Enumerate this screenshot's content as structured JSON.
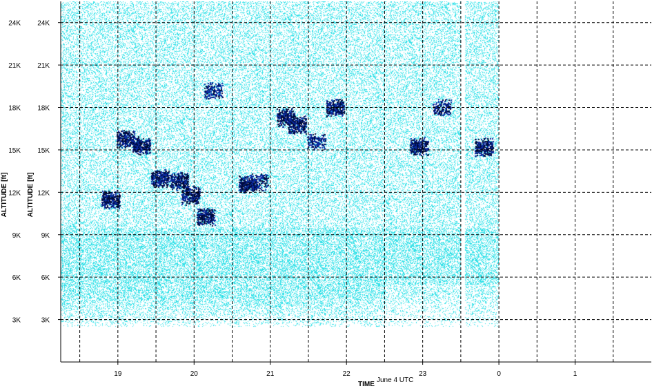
{
  "chart_data": {
    "type": "heatmap",
    "title": "",
    "xlabel": "TIME",
    "ylabel": "ALTITUDE [ft]",
    "date_label": "June 4 UTC",
    "x_tick_labels": [
      "19",
      "20",
      "21",
      "22",
      "23",
      "0",
      "1"
    ],
    "x_ticks_hours": [
      19,
      20,
      21,
      22,
      23,
      24,
      25
    ],
    "xlim_hours": [
      18.25,
      26.0
    ],
    "data_end_hour": 24.0,
    "y_tick_labels": [
      "3K",
      "6K",
      "9K",
      "12K",
      "15K",
      "18K",
      "21K",
      "24K"
    ],
    "y_ticks_ft": [
      3000,
      6000,
      9000,
      12000,
      15000,
      18000,
      21000,
      24000
    ],
    "ylim_ft": [
      0,
      25500
    ],
    "grid": true,
    "grid_style": "dashed",
    "colors": {
      "background_echo": "#2fe0e8",
      "medium_echo": "#0a2aa0",
      "strong_echo": "#000a3c",
      "grid": "#000000"
    },
    "cluster_features": [
      {
        "t": 18.9,
        "alt_ft": 11500,
        "intensity": "strong"
      },
      {
        "t": 19.1,
        "alt_ft": 15800,
        "intensity": "strong"
      },
      {
        "t": 19.3,
        "alt_ft": 15300,
        "intensity": "strong"
      },
      {
        "t": 19.55,
        "alt_ft": 13000,
        "intensity": "strong"
      },
      {
        "t": 19.8,
        "alt_ft": 12800,
        "intensity": "strong"
      },
      {
        "t": 19.95,
        "alt_ft": 11800,
        "intensity": "strong"
      },
      {
        "t": 20.15,
        "alt_ft": 10300,
        "intensity": "strong"
      },
      {
        "t": 20.25,
        "alt_ft": 19200,
        "intensity": "medium"
      },
      {
        "t": 20.7,
        "alt_ft": 12600,
        "intensity": "strong"
      },
      {
        "t": 20.85,
        "alt_ft": 12800,
        "intensity": "medium"
      },
      {
        "t": 21.2,
        "alt_ft": 17300,
        "intensity": "strong"
      },
      {
        "t": 21.35,
        "alt_ft": 16800,
        "intensity": "strong"
      },
      {
        "t": 21.6,
        "alt_ft": 15600,
        "intensity": "medium"
      },
      {
        "t": 21.85,
        "alt_ft": 18000,
        "intensity": "strong"
      },
      {
        "t": 22.95,
        "alt_ft": 15300,
        "intensity": "strong"
      },
      {
        "t": 23.25,
        "alt_ft": 18000,
        "intensity": "medium"
      },
      {
        "t": 23.8,
        "alt_ft": 15200,
        "intensity": "strong"
      }
    ]
  }
}
